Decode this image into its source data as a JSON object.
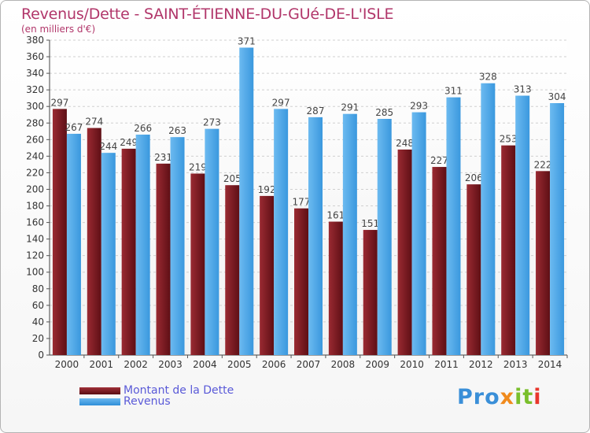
{
  "chart_data": {
    "type": "bar",
    "title": "Revenus/Dette - SAINT-ÉTIENNE-DU-GUé-DE-L'ISLE",
    "subtitle": "(en milliers d'€)",
    "categories": [
      "2000",
      "2001",
      "2002",
      "2003",
      "2004",
      "2005",
      "2006",
      "2007",
      "2008",
      "2009",
      "2010",
      "2011",
      "2012",
      "2013",
      "2014"
    ],
    "series": [
      {
        "name": "Montant de la Dette",
        "color": "#7a1e24",
        "values": [
          297,
          274,
          249,
          231,
          219,
          205,
          192,
          177,
          161,
          151,
          248,
          227,
          206,
          253,
          222
        ]
      },
      {
        "name": "Revenus",
        "color": "#4aa3e6",
        "values": [
          267,
          244,
          266,
          263,
          273,
          371,
          297,
          287,
          291,
          285,
          293,
          311,
          328,
          313,
          304
        ]
      }
    ],
    "ylim": [
      0,
      380
    ],
    "ytick_step": 20,
    "grid": true,
    "legend_position": "bottom-left"
  },
  "logo": {
    "text": "Proxiti",
    "parts": [
      "Pro",
      "x",
      "it",
      "i"
    ]
  }
}
